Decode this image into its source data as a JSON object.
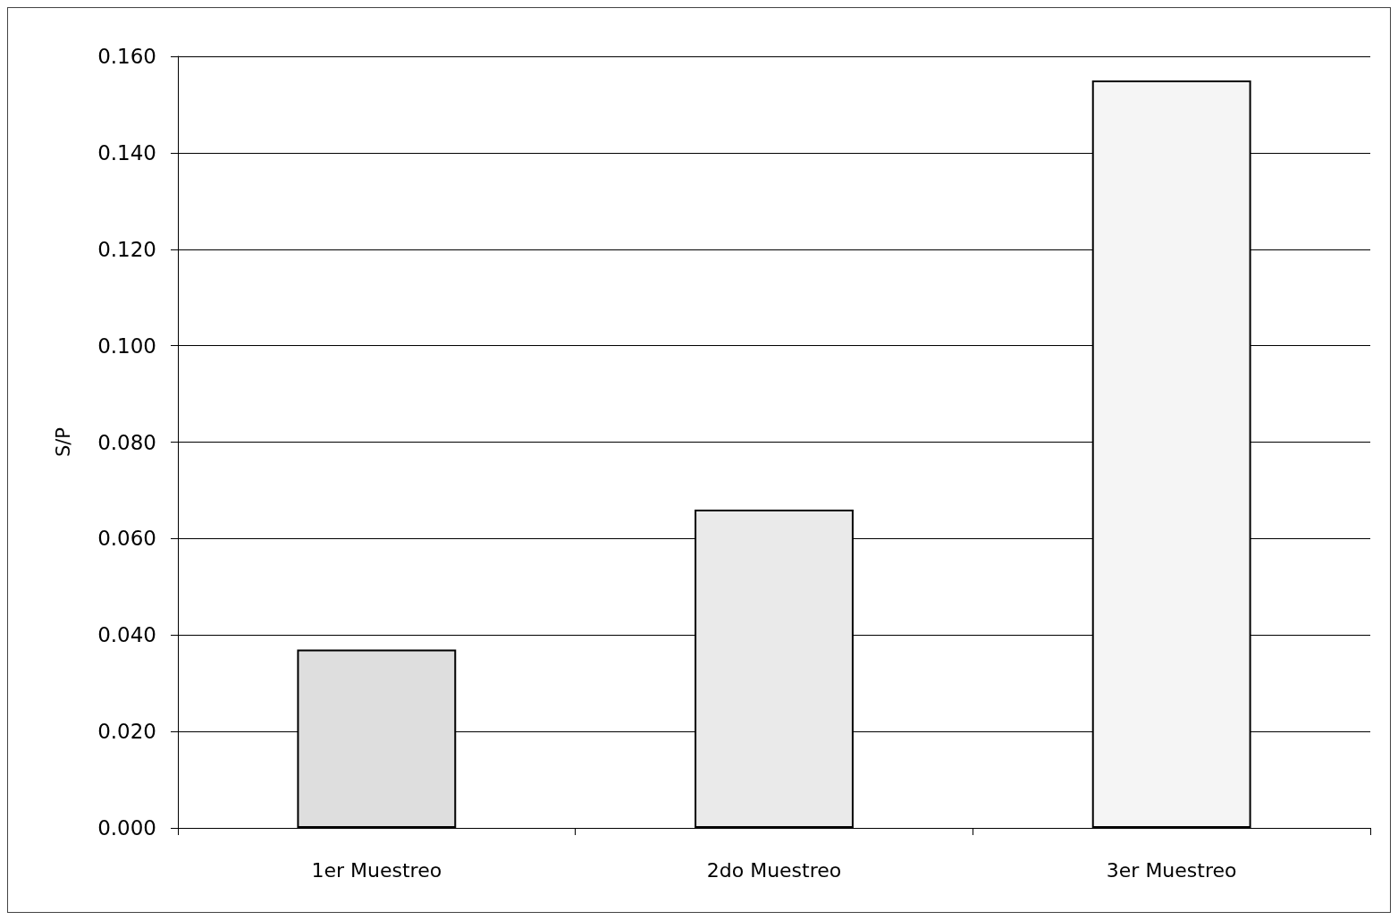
{
  "chart_data": {
    "type": "bar",
    "ylabel": "S/P",
    "categories": [
      "1er Muestreo",
      "2do Muestreo",
      "3er Muestreo"
    ],
    "values": [
      0.037,
      0.066,
      0.155
    ],
    "colors": [
      "#dedede",
      "#eaeaea",
      "#f5f5f5"
    ],
    "ylim": [
      0,
      0.16
    ],
    "yticks": [
      {
        "value": 0,
        "label": "0.000"
      },
      {
        "value": 0.02,
        "label": "0.020"
      },
      {
        "value": 0.04,
        "label": "0.040"
      },
      {
        "value": 0.06,
        "label": "0.060"
      },
      {
        "value": 0.08,
        "label": "0.080"
      },
      {
        "value": 0.1,
        "label": "0.100"
      },
      {
        "value": 0.12,
        "label": "0.120"
      },
      {
        "value": 0.14,
        "label": "0.140"
      },
      {
        "value": 0.16,
        "label": "0.160"
      }
    ],
    "grid": "y"
  }
}
